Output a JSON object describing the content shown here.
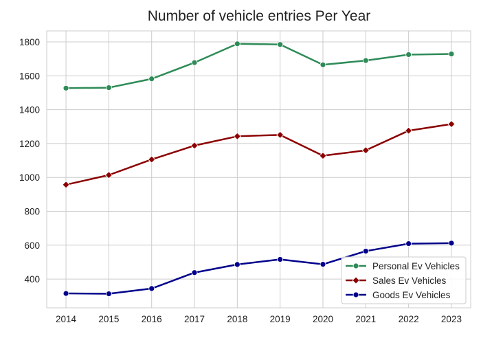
{
  "chart_data": {
    "type": "line",
    "title": "Number of vehicle entries Per Year",
    "xlabel": "",
    "ylabel": "",
    "x": [
      2014,
      2015,
      2016,
      2017,
      2018,
      2019,
      2020,
      2021,
      2022,
      2023
    ],
    "x_tick_labels": [
      "2014",
      "2015",
      "2016",
      "2017",
      "2018",
      "2019",
      "2020",
      "2021",
      "2022",
      "2023"
    ],
    "y_ticks": [
      400,
      600,
      800,
      1000,
      1200,
      1400,
      1600,
      1800
    ],
    "y_tick_labels": [
      "400",
      "600",
      "800",
      "1000",
      "1200",
      "1400",
      "1600",
      "1800"
    ],
    "ylim": [
      230,
      1865
    ],
    "xlim": [
      2013.55,
      2023.45
    ],
    "grid": true,
    "legend_position": "lower-right",
    "series": [
      {
        "name": "Personal Ev Vehicles",
        "color": "#2e8b57",
        "marker": "circle",
        "values": [
          1527,
          1530,
          1582,
          1678,
          1789,
          1785,
          1665,
          1690,
          1725,
          1729
        ]
      },
      {
        "name": "Sales Ev Vehicles",
        "color": "#8b0000",
        "marker": "diamond",
        "values": [
          957,
          1014,
          1106,
          1188,
          1243,
          1251,
          1128,
          1160,
          1276,
          1315
        ]
      },
      {
        "name": "Goods Ev Vehicles",
        "color": "#00008b",
        "marker": "circle",
        "values": [
          315,
          313,
          344,
          438,
          486,
          516,
          487,
          565,
          609,
          612
        ]
      }
    ]
  }
}
